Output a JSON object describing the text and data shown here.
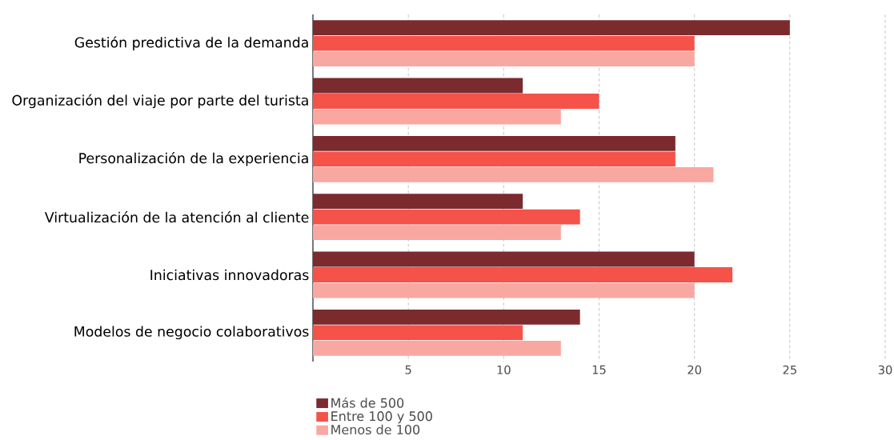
{
  "chart_data": {
    "type": "bar",
    "orientation": "horizontal",
    "categories": [
      "Gestión predictiva de la demanda",
      "Organización del viaje por parte del turista",
      "Personalización de la experiencia",
      "Virtualización de la atención al cliente",
      "Iniciativas innovadoras",
      "Modelos de negocio colaborativos"
    ],
    "series": [
      {
        "name": "Más de 500",
        "color": "#7b2a2e",
        "values": [
          25,
          11,
          19,
          11,
          20,
          14
        ]
      },
      {
        "name": "Entre 100 y 500",
        "color": "#f5524a",
        "values": [
          20,
          15,
          19,
          14,
          22,
          11
        ]
      },
      {
        "name": "Menos de 100",
        "color": "#f8a7a1",
        "values": [
          20,
          13,
          21,
          13,
          20,
          13
        ]
      }
    ],
    "xlim": [
      0,
      30
    ],
    "xticks": [
      5,
      10,
      15,
      20,
      25,
      30
    ],
    "grid": "x",
    "legend": "bottom left"
  }
}
